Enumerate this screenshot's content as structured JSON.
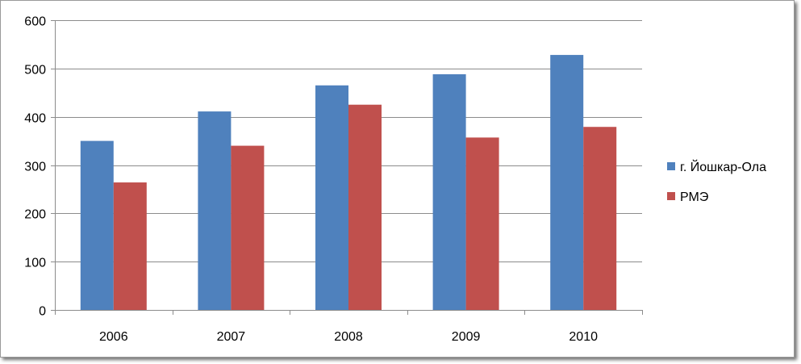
{
  "chart_data": {
    "type": "bar",
    "title": "",
    "xlabel": "",
    "ylabel": "",
    "categories": [
      "2006",
      "2007",
      "2008",
      "2009",
      "2010"
    ],
    "series": [
      {
        "name": "г. Йошкар-Ола",
        "color": "#4f81bd",
        "values": [
          350,
          411,
          465,
          488,
          528
        ]
      },
      {
        "name": "РМЭ",
        "color": "#c0504d",
        "values": [
          264,
          340,
          425,
          357,
          379
        ]
      }
    ],
    "ylim": [
      0,
      600
    ],
    "yticks": [
      0,
      100,
      200,
      300,
      400,
      500,
      600
    ],
    "grid": true,
    "legend_position": "right"
  }
}
